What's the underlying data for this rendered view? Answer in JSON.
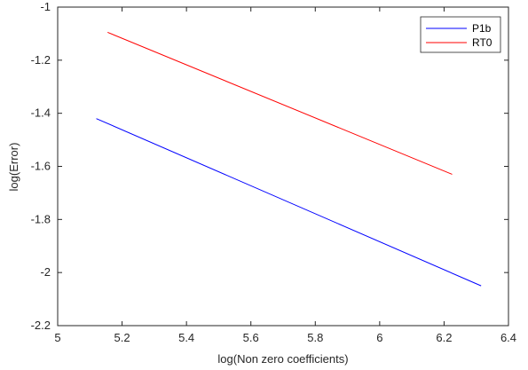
{
  "chart_data": {
    "type": "line",
    "title": "",
    "xlabel": "log(Non zero coefficients)",
    "ylabel": "log(Error)",
    "xlim": [
      5,
      6.4
    ],
    "ylim": [
      -2.2,
      -1
    ],
    "xticks": [
      "5",
      "5.2",
      "5.4",
      "5.6",
      "5.8",
      "6",
      "6.2",
      "6.4"
    ],
    "yticks": [
      "-1",
      "-1.2",
      "-1.4",
      "-1.6",
      "-1.8",
      "-2",
      "-2.2"
    ],
    "grid": false,
    "legend_position": "top-right",
    "series": [
      {
        "name": "P1b",
        "color": "#0000ff",
        "x": [
          5.12,
          6.315
        ],
        "y": [
          -1.42,
          -2.05
        ]
      },
      {
        "name": "RT0",
        "color": "#ff0000",
        "x": [
          5.155,
          6.225
        ],
        "y": [
          -1.095,
          -1.63
        ]
      }
    ]
  }
}
